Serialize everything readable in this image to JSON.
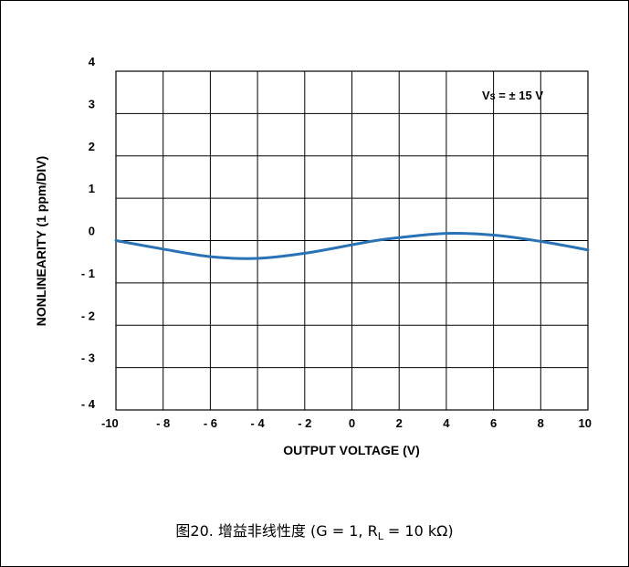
{
  "chart_data": {
    "type": "line",
    "xlabel": "OUTPUT VOLTAGE (V)",
    "ylabel": "NONLINEARITY (1 ppm/DIV)",
    "xlim": [
      -10,
      10
    ],
    "ylim": [
      -4,
      4
    ],
    "x_tick_labels": [
      "-10",
      "- 8",
      "- 6",
      "- 4",
      "- 2",
      "0",
      "2",
      "4",
      "6",
      "8",
      "10"
    ],
    "y_tick_labels": [
      "4",
      "3",
      "2",
      "1",
      "0",
      "- 1",
      "- 2",
      "- 3",
      "- 4"
    ],
    "grid": true,
    "annotation": {
      "prefix": "V",
      "sub": "S",
      "suffix": " = ± 15 V"
    },
    "series": [
      {
        "color": "#2872b5",
        "x": [
          -10,
          -8,
          -6,
          -4,
          -2,
          0,
          1,
          2,
          4,
          6,
          8,
          10
        ],
        "y": [
          0.0,
          -0.2,
          -0.38,
          -0.42,
          -0.3,
          -0.1,
          0.0,
          0.07,
          0.17,
          0.13,
          -0.02,
          -0.22
        ]
      }
    ]
  },
  "caption": {
    "main": "图20. 增益非线性度 (G = 1, R",
    "sub": "L",
    "tail": " = 10 kΩ)"
  }
}
